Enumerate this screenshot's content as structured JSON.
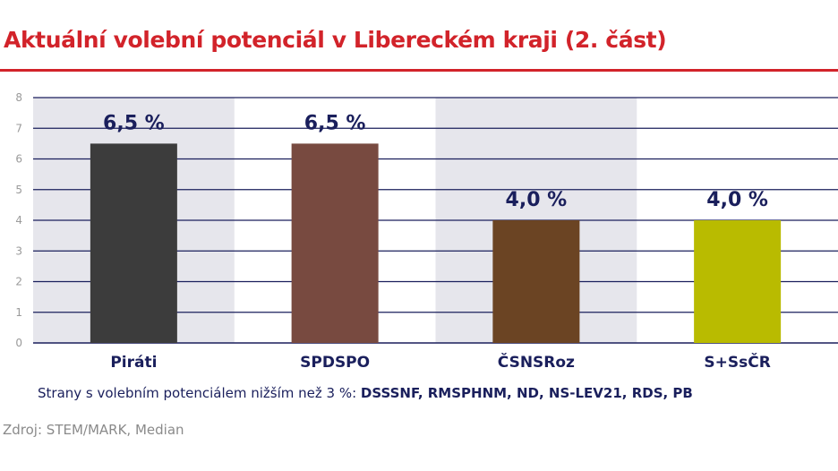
{
  "header": {
    "title": "Aktuální volební potenciál v Libereckém kraji (2. část)"
  },
  "chart_data": {
    "type": "bar",
    "categories": [
      "Piráti",
      "SPDSPO",
      "ČSNSRoz",
      "S+SsČR"
    ],
    "values": [
      6.5,
      6.5,
      4.0,
      4.0
    ],
    "value_labels": [
      "6,5 %",
      "6,5 %",
      "4,0 %",
      "4,0 %"
    ],
    "colors": [
      "#3c3c3c",
      "#784a40",
      "#6b4423",
      "#b9bb00"
    ],
    "band_color": "#e6e6ec",
    "grid_color": "#1a1f5c",
    "ylim": [
      0,
      8
    ],
    "yticks": [
      0,
      1,
      2,
      3,
      4,
      5,
      6,
      7,
      8
    ],
    "title": "",
    "xlabel": "",
    "ylabel": "",
    "grid": true
  },
  "footer": {
    "note_prefix": "Strany s volebním potenciálem nižším než 3 %:",
    "note_parties": "DSSSNF, RMSPHNM, ND, NS-LEV21, RDS, PB",
    "source": "Zdroj: STEM/MARK, Median"
  }
}
